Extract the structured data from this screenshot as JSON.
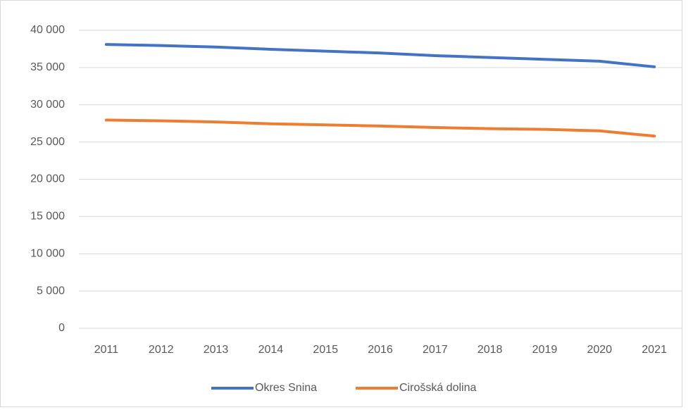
{
  "chart_data": {
    "type": "line",
    "categories": [
      "2011",
      "2012",
      "2013",
      "2014",
      "2015",
      "2016",
      "2017",
      "2018",
      "2019",
      "2020",
      "2021"
    ],
    "series": [
      {
        "name": "Okres Snina",
        "color": "#4472c4",
        "values": [
          38100,
          37950,
          37750,
          37450,
          37200,
          36950,
          36600,
          36350,
          36100,
          35850,
          35100
        ]
      },
      {
        "name": "Cirošská dolina",
        "color": "#ed7d31",
        "values": [
          27950,
          27850,
          27700,
          27450,
          27300,
          27150,
          26950,
          26800,
          26700,
          26500,
          25800
        ]
      }
    ],
    "ylim": [
      0,
      40000
    ],
    "yticks": [
      {
        "value": 0,
        "label": "0"
      },
      {
        "value": 5000,
        "label": "5 000"
      },
      {
        "value": 10000,
        "label": "10 000"
      },
      {
        "value": 15000,
        "label": "15 000"
      },
      {
        "value": 20000,
        "label": "20 000"
      },
      {
        "value": 25000,
        "label": "25 000"
      },
      {
        "value": 30000,
        "label": "30 000"
      },
      {
        "value": 35000,
        "label": "35 000"
      },
      {
        "value": 40000,
        "label": "40 000"
      }
    ],
    "grid": true,
    "legend": "bottom"
  }
}
